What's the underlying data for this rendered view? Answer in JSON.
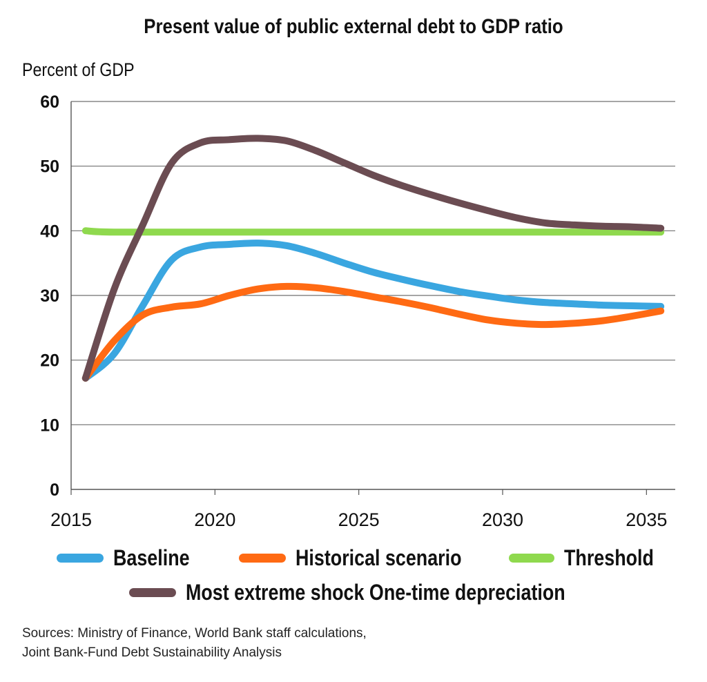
{
  "chart_data": {
    "type": "line",
    "title": "Present value of public external debt to GDP ratio",
    "ylabel": "Percent of GDP",
    "xlabel": "",
    "xlim": [
      2015,
      2036
    ],
    "ylim": [
      0,
      60
    ],
    "xticks": [
      2015,
      2020,
      2025,
      2030,
      2035
    ],
    "yticks": [
      0,
      10,
      20,
      30,
      40,
      50,
      60
    ],
    "grid": "horizontal",
    "legend_position": "bottom",
    "series": [
      {
        "name": "Baseline",
        "color": "#3aa6e0",
        "x": [
          2015.5,
          2016.5,
          2017.5,
          2018.5,
          2019.5,
          2020.5,
          2021.5,
          2022.5,
          2023.5,
          2024.5,
          2025.5,
          2026.5,
          2027.5,
          2028.5,
          2029.5,
          2030.5,
          2031.5,
          2032.5,
          2033.5,
          2034.5,
          2035.5
        ],
        "values": [
          17.2,
          21,
          28.5,
          35.5,
          37.5,
          37.9,
          38.1,
          37.7,
          36.5,
          35,
          33.6,
          32.5,
          31.5,
          30.6,
          29.9,
          29.3,
          28.9,
          28.7,
          28.5,
          28.4,
          28.3
        ]
      },
      {
        "name": "Historical scenario",
        "color": "#ff6a13",
        "x": [
          2015.5,
          2016.5,
          2017.5,
          2018.5,
          2019.5,
          2020.5,
          2021.5,
          2022.5,
          2023.5,
          2024.5,
          2025.5,
          2026.5,
          2027.5,
          2028.5,
          2029.5,
          2030.5,
          2031.5,
          2032.5,
          2033.5,
          2034.5,
          2035.5
        ],
        "values": [
          17.2,
          23,
          27,
          28.2,
          28.7,
          30,
          31,
          31.4,
          31.2,
          30.6,
          29.8,
          29,
          28.1,
          27.1,
          26.2,
          25.7,
          25.5,
          25.7,
          26.1,
          26.8,
          27.6
        ]
      },
      {
        "name": "Threshold",
        "color": "#8fd94e",
        "x": [
          2015.5,
          2016.5,
          2020.5,
          2025.5,
          2030.5,
          2035.5
        ],
        "values": [
          40,
          39.8,
          39.8,
          39.8,
          39.8,
          39.8
        ]
      },
      {
        "name": "Most extreme shock One-time depreciation",
        "color": "#6b4c52",
        "x": [
          2015.5,
          2016.5,
          2017.5,
          2018.5,
          2019.5,
          2020.5,
          2021.5,
          2022.5,
          2023.5,
          2024.5,
          2025.5,
          2026.5,
          2027.5,
          2028.5,
          2029.5,
          2030.5,
          2031.5,
          2032.5,
          2033.5,
          2034.5,
          2035.5
        ],
        "values": [
          17.2,
          31,
          41,
          50.5,
          53.6,
          54.1,
          54.3,
          53.9,
          52.4,
          50.5,
          48.6,
          47,
          45.6,
          44.3,
          43.1,
          42,
          41.2,
          40.9,
          40.7,
          40.6,
          40.4
        ]
      }
    ]
  },
  "legend": {
    "baseline": "Baseline",
    "historical": "Historical scenario",
    "threshold": "Threshold",
    "shock": "Most extreme shock One-time depreciation"
  },
  "sources": {
    "line1": "Sources: Ministry of Finance, World Bank staff calculations,",
    "line2": "Joint Bank-Fund Debt Sustainability Analysis"
  }
}
